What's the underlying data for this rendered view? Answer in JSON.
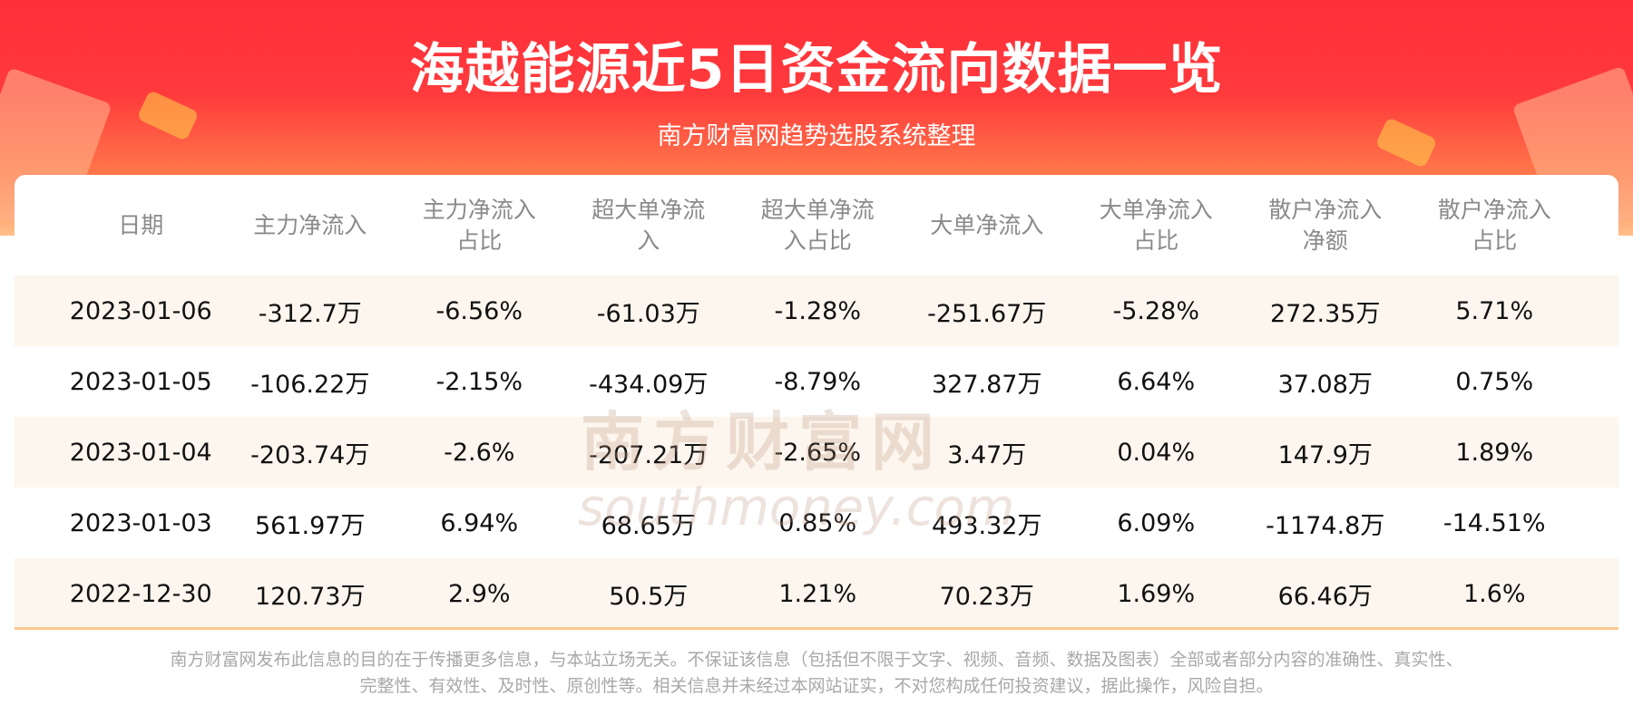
{
  "header": {
    "title": "海越能源近5日资金流向数据一览",
    "subtitle": "南方财富网趋势选股系统整理"
  },
  "table": {
    "columns": [
      "日期",
      "主力净流入",
      "主力净流入\n占比",
      "超大单净流\n入",
      "超大单净流\n入占比",
      "大单净流入",
      "大单净流入\n占比",
      "散户净流入\n净额",
      "散户净流入\n占比"
    ],
    "rows": [
      [
        "2023-01-06",
        "-312.7万",
        "-6.56%",
        "-61.03万",
        "-1.28%",
        "-251.67万",
        "-5.28%",
        "272.35万",
        "5.71%"
      ],
      [
        "2023-01-05",
        "-106.22万",
        "-2.15%",
        "-434.09万",
        "-8.79%",
        "327.87万",
        "6.64%",
        "37.08万",
        "0.75%"
      ],
      [
        "2023-01-04",
        "-203.74万",
        "-2.6%",
        "-207.21万",
        "-2.65%",
        "3.47万",
        "0.04%",
        "147.9万",
        "1.89%"
      ],
      [
        "2023-01-03",
        "561.97万",
        "6.94%",
        "68.65万",
        "0.85%",
        "493.32万",
        "6.09%",
        "-1174.8万",
        "-14.51%"
      ],
      [
        "2022-12-30",
        "120.73万",
        "2.9%",
        "50.5万",
        "1.21%",
        "70.23万",
        "1.69%",
        "66.46万",
        "1.6%"
      ]
    ]
  },
  "watermark": {
    "cn": "南方财富网",
    "en": "southmoney.com"
  },
  "footer": {
    "line1": "南方财富网发布此信息的目的在于传播更多信息，与本站立场无关。不保证该信息（包括但不限于文字、视频、音频、数据及图表）全部或者部分内容的准确性、真实性、",
    "line2": "完整性、有效性、及时性、原创性等。相关信息并未经过本网站证实，不对您构成任何投资建议，据此操作，风险自担。"
  },
  "colors": {
    "banner": "#ff2f3a",
    "alt_row": "#fdf6ee",
    "border": "#fcc88f"
  }
}
